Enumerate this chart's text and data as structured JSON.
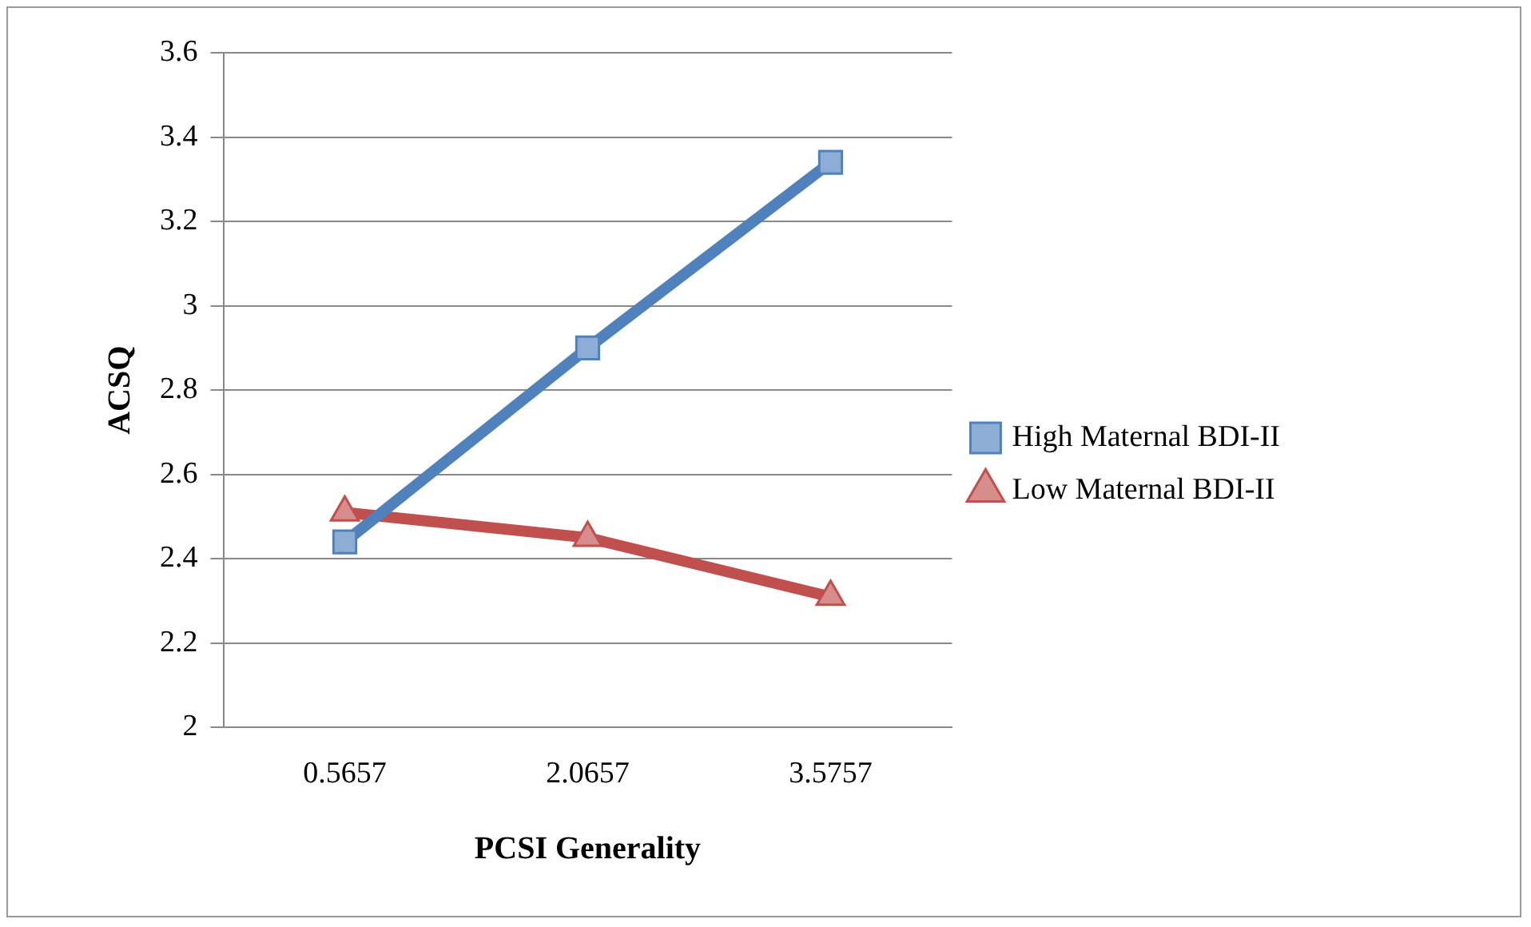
{
  "chart_data": {
    "type": "line",
    "xlabel": "PCSI Generality",
    "ylabel": "ACSQ",
    "categories": [
      "0.5657",
      "2.0657",
      "3.5757"
    ],
    "series": [
      {
        "name": "High Maternal BDI-II",
        "color": "#4f81bd",
        "marker": "square",
        "values": [
          2.44,
          2.9,
          3.34
        ]
      },
      {
        "name": "Low Maternal BDI-II",
        "color": "#c0504d",
        "marker": "triangle",
        "values": [
          2.51,
          2.45,
          2.31
        ]
      }
    ],
    "ylim": [
      2,
      3.6
    ],
    "yticks": [
      2,
      2.2,
      2.4,
      2.6,
      2.8,
      3,
      3.2,
      3.4,
      3.6
    ],
    "grid": "y",
    "legend": "right"
  }
}
